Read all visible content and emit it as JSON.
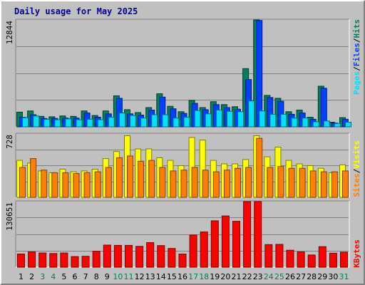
{
  "title": "Daily usage for May 2025",
  "colors": {
    "hits": "#00805c",
    "files": "#0040ff",
    "pages": "#00e0ff",
    "visits": "#ffff00",
    "sites": "#ff8000",
    "kbytes": "#ff0000",
    "weekend_label": "#00805c",
    "weekday_label": "#000000",
    "separator": "#000000"
  },
  "chart_data": [
    {
      "type": "bar",
      "panel": "hits-files-pages",
      "ymax_label": "12844",
      "ylim": [
        0,
        12844
      ],
      "series": [
        {
          "name": "Hits",
          "values": [
            1750,
            1900,
            1250,
            1200,
            1300,
            1250,
            1900,
            1350,
            1900,
            3700,
            2050,
            1700,
            2300,
            3950,
            2450,
            1800,
            3150,
            2300,
            3000,
            2650,
            2400,
            6950,
            13000,
            3750,
            3400,
            1800,
            2000,
            1150,
            4850,
            550,
            1100
          ]
        },
        {
          "name": "Files",
          "values": [
            1150,
            1450,
            1000,
            1000,
            1050,
            1050,
            1650,
            1150,
            1550,
            3400,
            1550,
            1400,
            2000,
            3550,
            2150,
            1600,
            2800,
            2050,
            2650,
            2300,
            2100,
            5650,
            12700,
            3500,
            3050,
            1500,
            1650,
            900,
            4600,
            450,
            900
          ]
        },
        {
          "name": "Pages",
          "values": [
            1100,
            1300,
            900,
            850,
            950,
            850,
            900,
            850,
            1150,
            1650,
            1350,
            1050,
            1450,
            1450,
            1050,
            1150,
            1950,
            1550,
            2000,
            1850,
            1800,
            3100,
            1900,
            1500,
            1500,
            1050,
            1050,
            600,
            700,
            400,
            550
          ]
        }
      ]
    },
    {
      "type": "bar",
      "panel": "visits-sites",
      "ymax_label": "728",
      "ylim": [
        0,
        728
      ],
      "series": [
        {
          "name": "Visits",
          "values": [
            420,
            390,
            300,
            280,
            320,
            290,
            300,
            320,
            440,
            520,
            700,
            550,
            550,
            450,
            420,
            360,
            680,
            650,
            420,
            380,
            380,
            430,
            700,
            460,
            570,
            420,
            380,
            360,
            330,
            280,
            370
          ]
        },
        {
          "name": "Sites",
          "values": [
            340,
            440,
            310,
            280,
            280,
            270,
            280,
            290,
            340,
            450,
            470,
            410,
            420,
            340,
            300,
            310,
            340,
            310,
            290,
            310,
            330,
            340,
            670,
            340,
            350,
            330,
            330,
            300,
            290,
            290,
            300
          ]
        }
      ]
    },
    {
      "type": "bar",
      "panel": "kbytes",
      "ymax_label": "130651",
      "ylim": [
        0,
        130651
      ],
      "series": [
        {
          "name": "KBytes",
          "values": [
            26000,
            30000,
            28000,
            27000,
            28000,
            21000,
            21500,
            31500,
            43500,
            43000,
            43000,
            41000,
            48500,
            42500,
            37000,
            26000,
            63500,
            69500,
            91500,
            101000,
            90500,
            136000,
            134000,
            44500,
            45000,
            33500,
            30000,
            24000,
            40500,
            27500,
            29500
          ]
        }
      ]
    }
  ],
  "x_labels": [
    "1",
    "2",
    "3",
    "4",
    "5",
    "6",
    "7",
    "8",
    "9",
    "10",
    "11",
    "12",
    "13",
    "14",
    "15",
    "16",
    "17",
    "18",
    "19",
    "20",
    "21",
    "22",
    "23",
    "24",
    "25",
    "26",
    "27",
    "28",
    "29",
    "30",
    "31"
  ],
  "weekend_days": [
    3,
    4,
    10,
    11,
    17,
    18,
    24,
    25,
    31
  ],
  "right_labels": {
    "top": [
      "Pages",
      "/",
      "Files",
      "/",
      "Hits"
    ],
    "middle": [
      "Sites",
      "/",
      "Visits"
    ],
    "bottom": [
      "KBytes"
    ]
  }
}
